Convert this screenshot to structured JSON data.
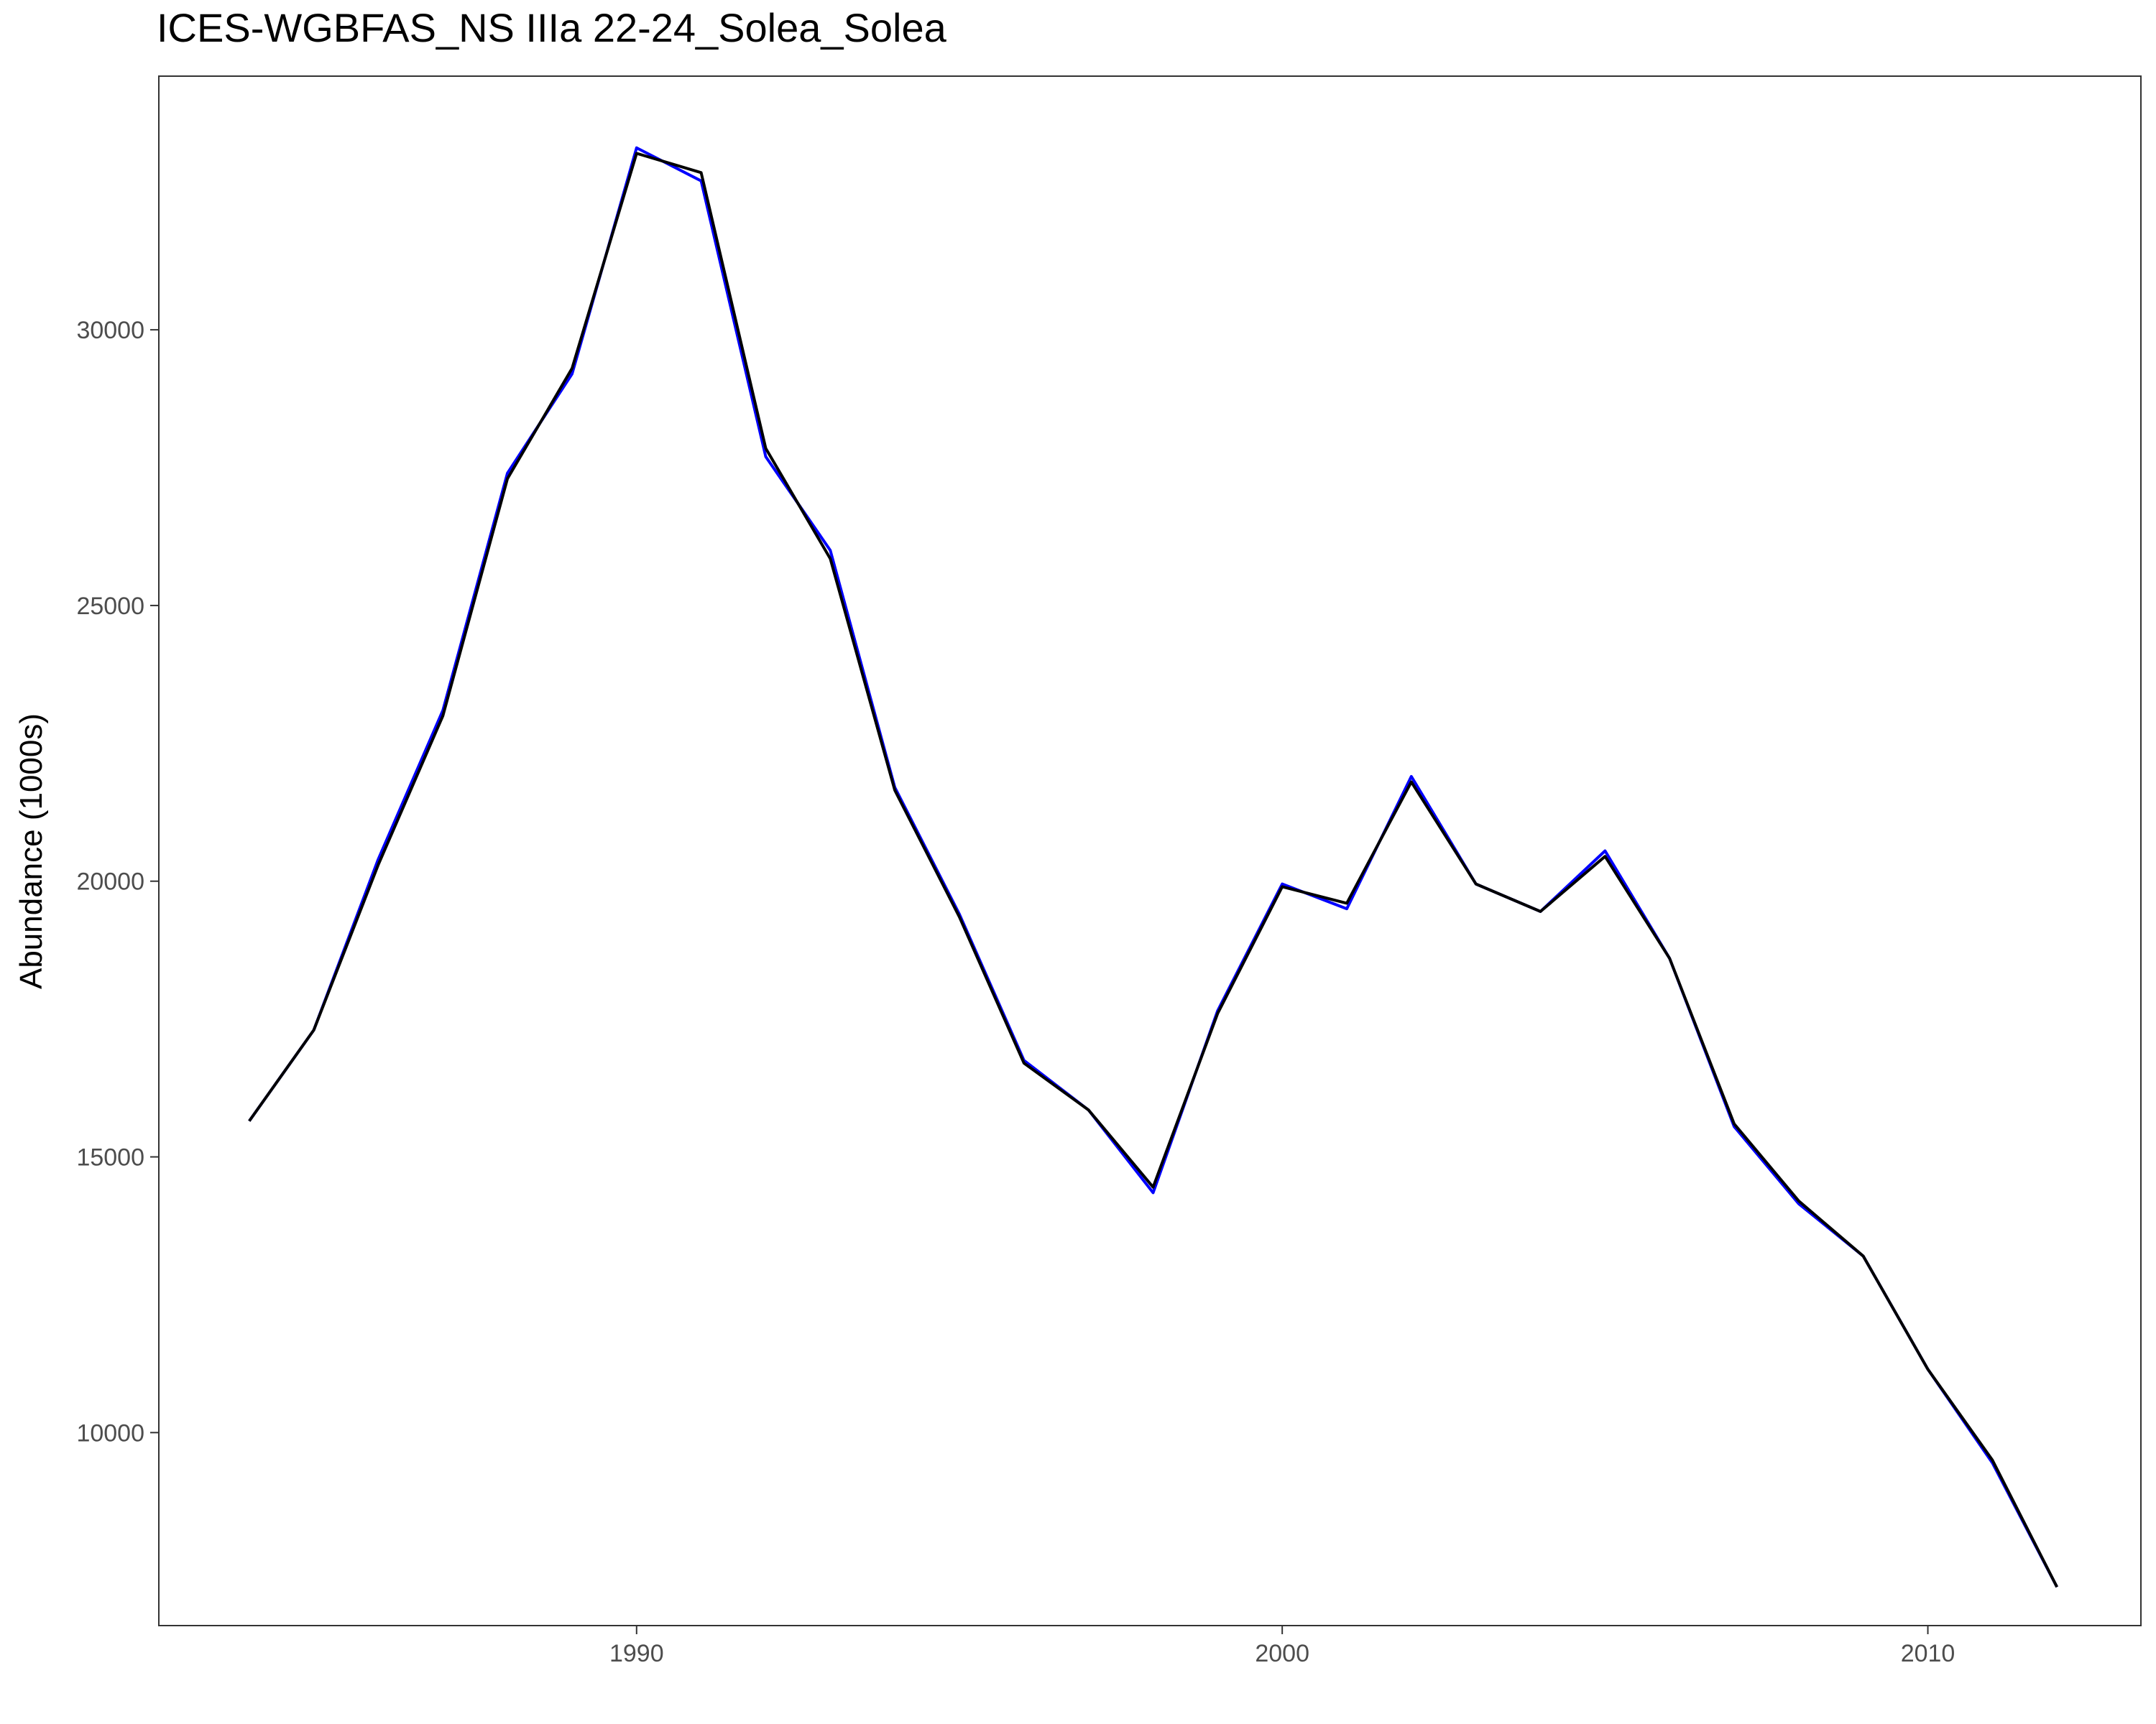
{
  "chart_data": {
    "type": "line",
    "title": "ICES-WGBFAS_NS IIIa 22-24_Solea_Solea",
    "xlabel": "",
    "ylabel": "Abundance (1000s)",
    "xlim": [
      1982.6,
      2013.3
    ],
    "ylim": [
      6500,
      34600
    ],
    "xticks": [
      1990,
      2000,
      2010
    ],
    "yticks": [
      10000,
      15000,
      20000,
      25000,
      30000
    ],
    "grid": false,
    "legend": "none",
    "series": [
      {
        "color": "#0000ff",
        "x": [
          1984,
          1985,
          1986,
          1987,
          1988,
          1989,
          1990,
          1991,
          1992,
          1993,
          1994,
          1995,
          1996,
          1997,
          1998,
          1999,
          2000,
          2001,
          2002,
          2003,
          2004,
          2005,
          2006,
          2007,
          2008,
          2009,
          2010,
          2011,
          2012
        ],
        "y": [
          15650,
          17300,
          20400,
          23100,
          27400,
          29200,
          33300,
          32700,
          27700,
          26000,
          21700,
          19400,
          16750,
          15850,
          14350,
          17650,
          19950,
          19500,
          21900,
          19950,
          19450,
          20550,
          18600,
          15550,
          14150,
          13200,
          11150,
          9450,
          7200
        ]
      },
      {
        "color": "#000000",
        "x": [
          1984,
          1985,
          1986,
          1987,
          1988,
          1989,
          1990,
          1991,
          1992,
          1993,
          1994,
          1995,
          1996,
          1997,
          1998,
          1999,
          2000,
          2001,
          2002,
          2003,
          2004,
          2005,
          2006,
          2007,
          2008,
          2009,
          2010,
          2011,
          2012
        ],
        "y": [
          15650,
          17300,
          20300,
          23000,
          27300,
          29300,
          33200,
          32850,
          27850,
          25850,
          21650,
          19350,
          16700,
          15850,
          14450,
          17600,
          19900,
          19600,
          21800,
          19950,
          19450,
          20450,
          18600,
          15600,
          14200,
          13200,
          11150,
          9500,
          7200
        ]
      }
    ]
  }
}
